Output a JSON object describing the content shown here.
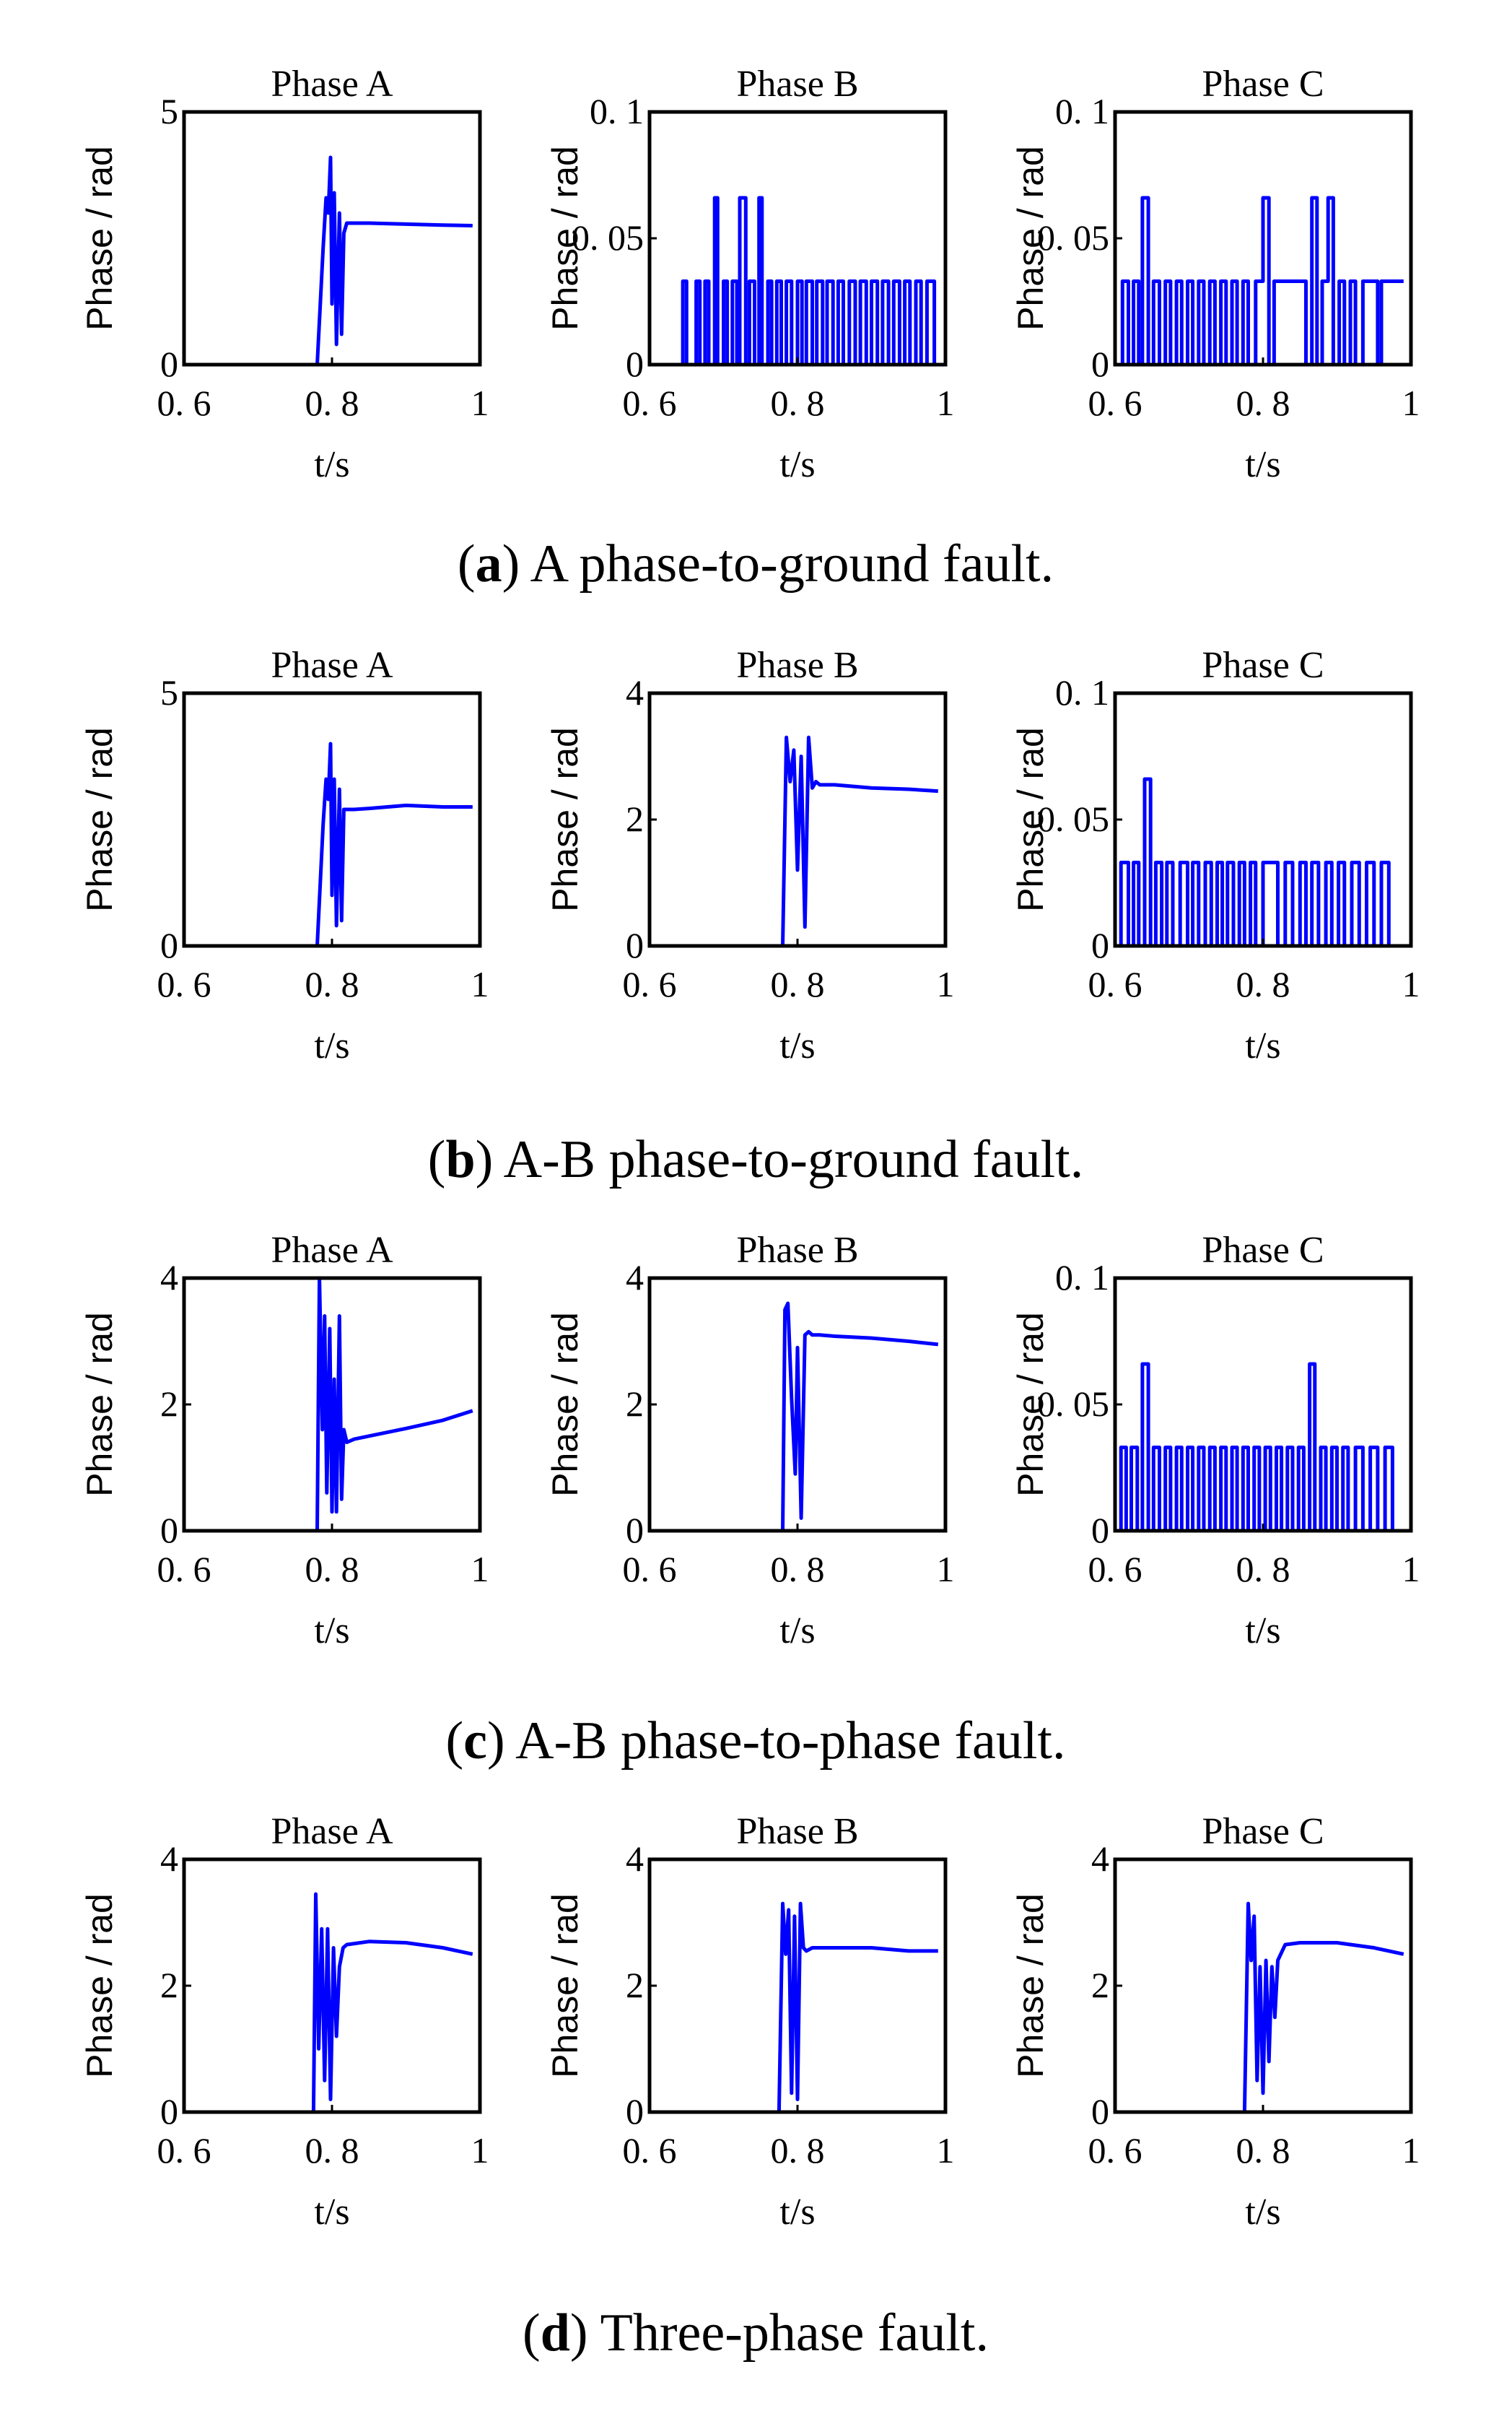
{
  "colors": {
    "series": "#0000ff",
    "axes": "#000000",
    "background": "#ffffff"
  },
  "chart_data": [
    {
      "row": "a",
      "title": "Phase A",
      "type": "line",
      "xlabel": "t/s",
      "ylabel": "Phase / rad",
      "xlim": [
        0.6,
        1.0
      ],
      "ylim": [
        0,
        5
      ],
      "xticks": [
        "0. 6",
        "0. 8",
        "1"
      ],
      "yticks": [
        "0",
        "5"
      ],
      "x": [
        0.6,
        0.78,
        0.788,
        0.792,
        0.795,
        0.798,
        0.8,
        0.803,
        0.806,
        0.81,
        0.813,
        0.816,
        0.82,
        0.83,
        0.85,
        0.9,
        0.95,
        0.99
      ],
      "values": [
        0,
        0,
        2.3,
        3.3,
        3.0,
        4.1,
        1.2,
        3.4,
        0.4,
        3.0,
        0.6,
        2.6,
        2.8,
        2.8,
        2.8,
        2.78,
        2.76,
        2.75
      ]
    },
    {
      "row": "a",
      "title": "Phase B",
      "type": "line",
      "xlabel": "t/s",
      "ylabel": "Phase / rad",
      "xlim": [
        0.6,
        1.0
      ],
      "ylim": [
        0,
        0.1
      ],
      "xticks": [
        "0. 6",
        "0. 8",
        "1"
      ],
      "yticks": [
        "0",
        "0. 05",
        "0. 1"
      ],
      "x": [
        0.6,
        0.645,
        0.645,
        0.65,
        0.65,
        0.663,
        0.663,
        0.668,
        0.668,
        0.675,
        0.675,
        0.68,
        0.68,
        0.688,
        0.688,
        0.692,
        0.692,
        0.7,
        0.7,
        0.705,
        0.705,
        0.712,
        0.712,
        0.718,
        0.718,
        0.722,
        0.722,
        0.73,
        0.73,
        0.735,
        0.735,
        0.742,
        0.742,
        0.748,
        0.748,
        0.752,
        0.752,
        0.76,
        0.76,
        0.765,
        0.765,
        0.772,
        0.772,
        0.778,
        0.778,
        0.785,
        0.785,
        0.792,
        0.792,
        0.8,
        0.8,
        0.806,
        0.806,
        0.812,
        0.812,
        0.82,
        0.82,
        0.826,
        0.826,
        0.834,
        0.834,
        0.84,
        0.84,
        0.848,
        0.848,
        0.855,
        0.855,
        0.862,
        0.862,
        0.87,
        0.87,
        0.878,
        0.878,
        0.885,
        0.885,
        0.893,
        0.893,
        0.9,
        0.9,
        0.908,
        0.908,
        0.915,
        0.915,
        0.923,
        0.923,
        0.93,
        0.93,
        0.938,
        0.938,
        0.945,
        0.945,
        0.952,
        0.952,
        0.96,
        0.96,
        0.967,
        0.967,
        0.975,
        0.975,
        0.985,
        0.985,
        0.99
      ],
      "values": [
        0,
        0,
        0.033,
        0.033,
        0,
        0,
        0.033,
        0.033,
        0,
        0,
        0.033,
        0.033,
        0,
        0,
        0.066,
        0.066,
        0,
        0,
        0.033,
        0.033,
        0,
        0,
        0.033,
        0.033,
        0,
        0,
        0.066,
        0.066,
        0,
        0,
        0.033,
        0.033,
        0,
        0,
        0.066,
        0.066,
        0,
        0,
        0.033,
        0.033,
        0,
        0,
        0.033,
        0.033,
        0,
        0,
        0.033,
        0.033,
        0,
        0,
        0.033,
        0.033,
        0,
        0,
        0.033,
        0.033,
        0,
        0,
        0.033,
        0.033,
        0,
        0,
        0.033,
        0.033,
        0,
        0,
        0.033,
        0.033,
        0,
        0,
        0.033,
        0.033,
        0,
        0,
        0.033,
        0.033,
        0,
        0,
        0.033,
        0.033,
        0,
        0,
        0.033,
        0.033,
        0,
        0,
        0.033,
        0.033,
        0,
        0,
        0.033,
        0.033,
        0,
        0,
        0.033,
        0.033,
        0,
        0,
        0.033,
        0.033,
        0,
        0
      ]
    },
    {
      "row": "a",
      "title": "Phase C",
      "type": "line",
      "xlabel": "t/s",
      "ylabel": "Phase / rad",
      "xlim": [
        0.6,
        1.0
      ],
      "ylim": [
        0,
        0.1
      ],
      "xticks": [
        "0. 6",
        "0. 8",
        "1"
      ],
      "yticks": [
        "0",
        "0. 05",
        "0. 1"
      ],
      "x": [
        0.6,
        0.61,
        0.61,
        0.618,
        0.618,
        0.625,
        0.625,
        0.632,
        0.632,
        0.637,
        0.637,
        0.645,
        0.645,
        0.652,
        0.652,
        0.66,
        0.66,
        0.668,
        0.668,
        0.675,
        0.675,
        0.683,
        0.683,
        0.69,
        0.69,
        0.698,
        0.698,
        0.705,
        0.705,
        0.713,
        0.713,
        0.72,
        0.72,
        0.728,
        0.728,
        0.735,
        0.735,
        0.743,
        0.743,
        0.75,
        0.75,
        0.758,
        0.758,
        0.765,
        0.765,
        0.773,
        0.773,
        0.78,
        0.78,
        0.79,
        0.79,
        0.8,
        0.8,
        0.808,
        0.808,
        0.815,
        0.815,
        0.858,
        0.858,
        0.866,
        0.866,
        0.873,
        0.873,
        0.88,
        0.88,
        0.888,
        0.888,
        0.895,
        0.895,
        0.903,
        0.903,
        0.91,
        0.91,
        0.918,
        0.918,
        0.925,
        0.925,
        0.935,
        0.935,
        0.955,
        0.955,
        0.96,
        0.96,
        0.99
      ],
      "values": [
        0,
        0,
        0.033,
        0.033,
        0,
        0,
        0.033,
        0.033,
        0,
        0,
        0.066,
        0.066,
        0,
        0,
        0.033,
        0.033,
        0,
        0,
        0.033,
        0.033,
        0,
        0,
        0.033,
        0.033,
        0,
        0,
        0.033,
        0.033,
        0,
        0,
        0.033,
        0.033,
        0,
        0,
        0.033,
        0.033,
        0,
        0,
        0.033,
        0.033,
        0,
        0,
        0.033,
        0.033,
        0,
        0,
        0.033,
        0.033,
        0,
        0,
        0.033,
        0.033,
        0.066,
        0.066,
        0,
        0,
        0.033,
        0.033,
        0,
        0,
        0.066,
        0.066,
        0,
        0,
        0.033,
        0.033,
        0.066,
        0.066,
        0,
        0,
        0.033,
        0.033,
        0,
        0,
        0.033,
        0.033,
        0,
        0,
        0.033,
        0.033,
        0,
        0,
        0.033,
        0.033
      ]
    },
    {
      "row": "b",
      "title": "Phase A",
      "type": "line",
      "xlabel": "t/s",
      "ylabel": "Phase / rad",
      "xlim": [
        0.6,
        1.0
      ],
      "ylim": [
        0,
        5
      ],
      "xticks": [
        "0. 6",
        "0. 8",
        "1"
      ],
      "yticks": [
        "0",
        "5"
      ],
      "x": [
        0.6,
        0.78,
        0.788,
        0.792,
        0.795,
        0.798,
        0.8,
        0.803,
        0.806,
        0.81,
        0.813,
        0.816,
        0.82,
        0.83,
        0.85,
        0.9,
        0.95,
        0.99
      ],
      "values": [
        0,
        0,
        2.4,
        3.3,
        2.9,
        4.0,
        1.0,
        3.3,
        0.4,
        3.1,
        0.5,
        2.7,
        2.7,
        2.7,
        2.72,
        2.78,
        2.75,
        2.75
      ]
    },
    {
      "row": "b",
      "title": "Phase B",
      "type": "line",
      "xlabel": "t/s",
      "ylabel": "Phase / rad",
      "xlim": [
        0.6,
        1.0
      ],
      "ylim": [
        0,
        4
      ],
      "xticks": [
        "0. 6",
        "0. 8",
        "1"
      ],
      "yticks": [
        "0",
        "2",
        "4"
      ],
      "x": [
        0.6,
        0.78,
        0.785,
        0.79,
        0.795,
        0.8,
        0.805,
        0.81,
        0.815,
        0.82,
        0.825,
        0.83,
        0.85,
        0.9,
        0.95,
        0.99
      ],
      "values": [
        0,
        0,
        3.3,
        2.6,
        3.1,
        1.2,
        3.0,
        0.3,
        3.3,
        2.5,
        2.6,
        2.55,
        2.55,
        2.5,
        2.48,
        2.45
      ]
    },
    {
      "row": "b",
      "title": "Phase C",
      "type": "line",
      "xlabel": "t/s",
      "ylabel": "Phase / rad",
      "xlim": [
        0.6,
        1.0
      ],
      "ylim": [
        0,
        0.1
      ],
      "xticks": [
        "0. 6",
        "0. 8",
        "1"
      ],
      "yticks": [
        "0",
        "0. 05",
        "0. 1"
      ],
      "x": [
        0.6,
        0.608,
        0.608,
        0.618,
        0.618,
        0.625,
        0.625,
        0.632,
        0.632,
        0.64,
        0.64,
        0.648,
        0.648,
        0.655,
        0.655,
        0.663,
        0.663,
        0.67,
        0.67,
        0.678,
        0.678,
        0.688,
        0.688,
        0.698,
        0.698,
        0.705,
        0.705,
        0.713,
        0.713,
        0.722,
        0.722,
        0.73,
        0.73,
        0.738,
        0.738,
        0.745,
        0.745,
        0.752,
        0.752,
        0.76,
        0.76,
        0.768,
        0.768,
        0.775,
        0.775,
        0.783,
        0.783,
        0.79,
        0.79,
        0.8,
        0.8,
        0.82,
        0.82,
        0.83,
        0.83,
        0.84,
        0.84,
        0.85,
        0.85,
        0.858,
        0.858,
        0.866,
        0.866,
        0.875,
        0.875,
        0.885,
        0.885,
        0.893,
        0.893,
        0.902,
        0.902,
        0.91,
        0.91,
        0.92,
        0.92,
        0.93,
        0.93,
        0.94,
        0.94,
        0.95,
        0.95,
        0.96,
        0.96,
        0.97,
        0.97,
        0.99
      ],
      "values": [
        0,
        0,
        0.033,
        0.033,
        0,
        0,
        0.033,
        0.033,
        0,
        0,
        0.066,
        0.066,
        0,
        0,
        0.033,
        0.033,
        0,
        0,
        0.033,
        0.033,
        0,
        0,
        0.033,
        0.033,
        0,
        0,
        0.033,
        0.033,
        0,
        0,
        0.033,
        0.033,
        0,
        0,
        0.033,
        0.033,
        0,
        0,
        0.033,
        0.033,
        0,
        0,
        0.033,
        0.033,
        0,
        0,
        0.033,
        0.033,
        0,
        0,
        0.033,
        0.033,
        0,
        0,
        0.033,
        0.033,
        0,
        0,
        0.033,
        0.033,
        0,
        0,
        0.033,
        0.033,
        0,
        0,
        0.033,
        0.033,
        0,
        0,
        0.033,
        0.033,
        0,
        0,
        0.033,
        0.033,
        0,
        0,
        0.033,
        0.033,
        0,
        0,
        0.033,
        0.033,
        0,
        0
      ]
    },
    {
      "row": "c",
      "title": "Phase A",
      "type": "line",
      "xlabel": "t/s",
      "ylabel": "Phase / rad",
      "xlim": [
        0.6,
        1.0
      ],
      "ylim": [
        0,
        4
      ],
      "xticks": [
        "0. 6",
        "0. 8",
        "1"
      ],
      "yticks": [
        "0",
        "2",
        "4"
      ],
      "x": [
        0.6,
        0.78,
        0.783,
        0.787,
        0.79,
        0.793,
        0.797,
        0.8,
        0.803,
        0.806,
        0.81,
        0.813,
        0.816,
        0.82,
        0.83,
        0.85,
        0.9,
        0.95,
        0.99
      ],
      "values": [
        0,
        0,
        4.0,
        1.6,
        3.4,
        0.6,
        3.2,
        0.3,
        2.4,
        0.3,
        3.4,
        0.5,
        1.6,
        1.4,
        1.45,
        1.5,
        1.62,
        1.75,
        1.9
      ]
    },
    {
      "row": "c",
      "title": "Phase B",
      "type": "line",
      "xlabel": "t/s",
      "ylabel": "Phase / rad",
      "xlim": [
        0.6,
        1.0
      ],
      "ylim": [
        0,
        4
      ],
      "xticks": [
        "0. 6",
        "0. 8",
        "1"
      ],
      "yticks": [
        "0",
        "2",
        "4"
      ],
      "x": [
        0.6,
        0.78,
        0.783,
        0.787,
        0.792,
        0.797,
        0.8,
        0.805,
        0.81,
        0.815,
        0.82,
        0.83,
        0.85,
        0.9,
        0.95,
        0.99
      ],
      "values": [
        0,
        0,
        3.5,
        3.6,
        2.1,
        0.9,
        2.9,
        0.2,
        3.1,
        3.15,
        3.1,
        3.1,
        3.08,
        3.05,
        3.0,
        2.95
      ]
    },
    {
      "row": "c",
      "title": "Phase C",
      "type": "line",
      "xlabel": "t/s",
      "ylabel": "Phase / rad",
      "xlim": [
        0.6,
        1.0
      ],
      "ylim": [
        0,
        0.1
      ],
      "xticks": [
        "0. 6",
        "0. 8",
        "1"
      ],
      "yticks": [
        "0",
        "0. 05",
        "0. 1"
      ],
      "x": [
        0.6,
        0.608,
        0.608,
        0.615,
        0.615,
        0.622,
        0.622,
        0.63,
        0.63,
        0.637,
        0.637,
        0.645,
        0.645,
        0.652,
        0.652,
        0.66,
        0.66,
        0.668,
        0.668,
        0.675,
        0.675,
        0.683,
        0.683,
        0.69,
        0.69,
        0.698,
        0.698,
        0.705,
        0.705,
        0.713,
        0.713,
        0.72,
        0.72,
        0.728,
        0.728,
        0.735,
        0.735,
        0.743,
        0.743,
        0.75,
        0.75,
        0.758,
        0.758,
        0.765,
        0.765,
        0.773,
        0.773,
        0.78,
        0.78,
        0.788,
        0.788,
        0.795,
        0.795,
        0.803,
        0.803,
        0.81,
        0.81,
        0.818,
        0.818,
        0.825,
        0.825,
        0.833,
        0.833,
        0.84,
        0.84,
        0.848,
        0.848,
        0.855,
        0.855,
        0.863,
        0.863,
        0.87,
        0.87,
        0.878,
        0.878,
        0.885,
        0.885,
        0.893,
        0.893,
        0.9,
        0.9,
        0.908,
        0.908,
        0.915,
        0.915,
        0.925,
        0.925,
        0.935,
        0.935,
        0.945,
        0.945,
        0.955,
        0.955,
        0.965,
        0.965,
        0.975,
        0.975,
        0.99
      ],
      "values": [
        0,
        0,
        0.033,
        0.033,
        0,
        0,
        0.033,
        0.033,
        0,
        0,
        0.066,
        0.066,
        0,
        0,
        0.033,
        0.033,
        0,
        0,
        0.033,
        0.033,
        0,
        0,
        0.033,
        0.033,
        0,
        0,
        0.033,
        0.033,
        0,
        0,
        0.033,
        0.033,
        0,
        0,
        0.033,
        0.033,
        0,
        0,
        0.033,
        0.033,
        0,
        0,
        0.033,
        0.033,
        0,
        0,
        0.033,
        0.033,
        0,
        0,
        0.033,
        0.033,
        0,
        0,
        0.033,
        0.033,
        0,
        0,
        0.033,
        0.033,
        0,
        0,
        0.033,
        0.033,
        0,
        0,
        0.033,
        0.033,
        0,
        0,
        0.066,
        0.066,
        0,
        0,
        0.033,
        0.033,
        0,
        0,
        0.033,
        0.033,
        0,
        0,
        0.033,
        0.033,
        0,
        0,
        0.033,
        0.033,
        0,
        0,
        0.033,
        0.033,
        0,
        0,
        0.033,
        0.033,
        0,
        0
      ]
    },
    {
      "row": "d",
      "title": "Phase A",
      "type": "line",
      "xlabel": "t/s",
      "ylabel": "Phase / rad",
      "xlim": [
        0.6,
        1.0
      ],
      "ylim": [
        0,
        4
      ],
      "xticks": [
        "0. 6",
        "0. 8",
        "1"
      ],
      "yticks": [
        "0",
        "2",
        "4"
      ],
      "x": [
        0.6,
        0.775,
        0.778,
        0.782,
        0.786,
        0.79,
        0.794,
        0.798,
        0.802,
        0.806,
        0.81,
        0.815,
        0.82,
        0.85,
        0.9,
        0.95,
        0.99
      ],
      "values": [
        0,
        0,
        3.45,
        1.0,
        2.9,
        0.5,
        2.9,
        0.2,
        2.6,
        1.2,
        2.3,
        2.6,
        2.65,
        2.7,
        2.68,
        2.6,
        2.5
      ]
    },
    {
      "row": "d",
      "title": "Phase B",
      "type": "line",
      "xlabel": "t/s",
      "ylabel": "Phase / rad",
      "xlim": [
        0.6,
        1.0
      ],
      "ylim": [
        0,
        4
      ],
      "xticks": [
        "0. 6",
        "0. 8",
        "1"
      ],
      "yticks": [
        "0",
        "2",
        "4"
      ],
      "x": [
        0.6,
        0.775,
        0.78,
        0.784,
        0.788,
        0.792,
        0.796,
        0.8,
        0.804,
        0.808,
        0.812,
        0.82,
        0.85,
        0.9,
        0.95,
        0.99
      ],
      "values": [
        0,
        0,
        3.3,
        2.5,
        3.2,
        0.3,
        3.1,
        0.2,
        3.3,
        2.6,
        2.55,
        2.6,
        2.6,
        2.6,
        2.55,
        2.55
      ]
    },
    {
      "row": "d",
      "title": "Phase C",
      "type": "line",
      "xlabel": "t/s",
      "ylabel": "Phase / rad",
      "xlim": [
        0.6,
        1.0
      ],
      "ylim": [
        0,
        4
      ],
      "xticks": [
        "0. 6",
        "0. 8",
        "1"
      ],
      "yticks": [
        "0",
        "2",
        "4"
      ],
      "x": [
        0.6,
        0.775,
        0.78,
        0.784,
        0.788,
        0.792,
        0.796,
        0.8,
        0.804,
        0.808,
        0.812,
        0.816,
        0.82,
        0.83,
        0.85,
        0.9,
        0.95,
        0.99
      ],
      "values": [
        0,
        0,
        3.3,
        2.4,
        3.1,
        0.5,
        2.3,
        0.3,
        2.4,
        0.8,
        2.3,
        1.5,
        2.4,
        2.65,
        2.68,
        2.68,
        2.6,
        2.5
      ]
    }
  ],
  "captions": [
    {
      "letter": "a",
      "text": "A phase-to-ground fault."
    },
    {
      "letter": "b",
      "text": "A-B phase-to-ground fault."
    },
    {
      "letter": "c",
      "text": "A-B phase-to-phase fault."
    },
    {
      "letter": "d",
      "text": "Three-phase fault."
    }
  ]
}
